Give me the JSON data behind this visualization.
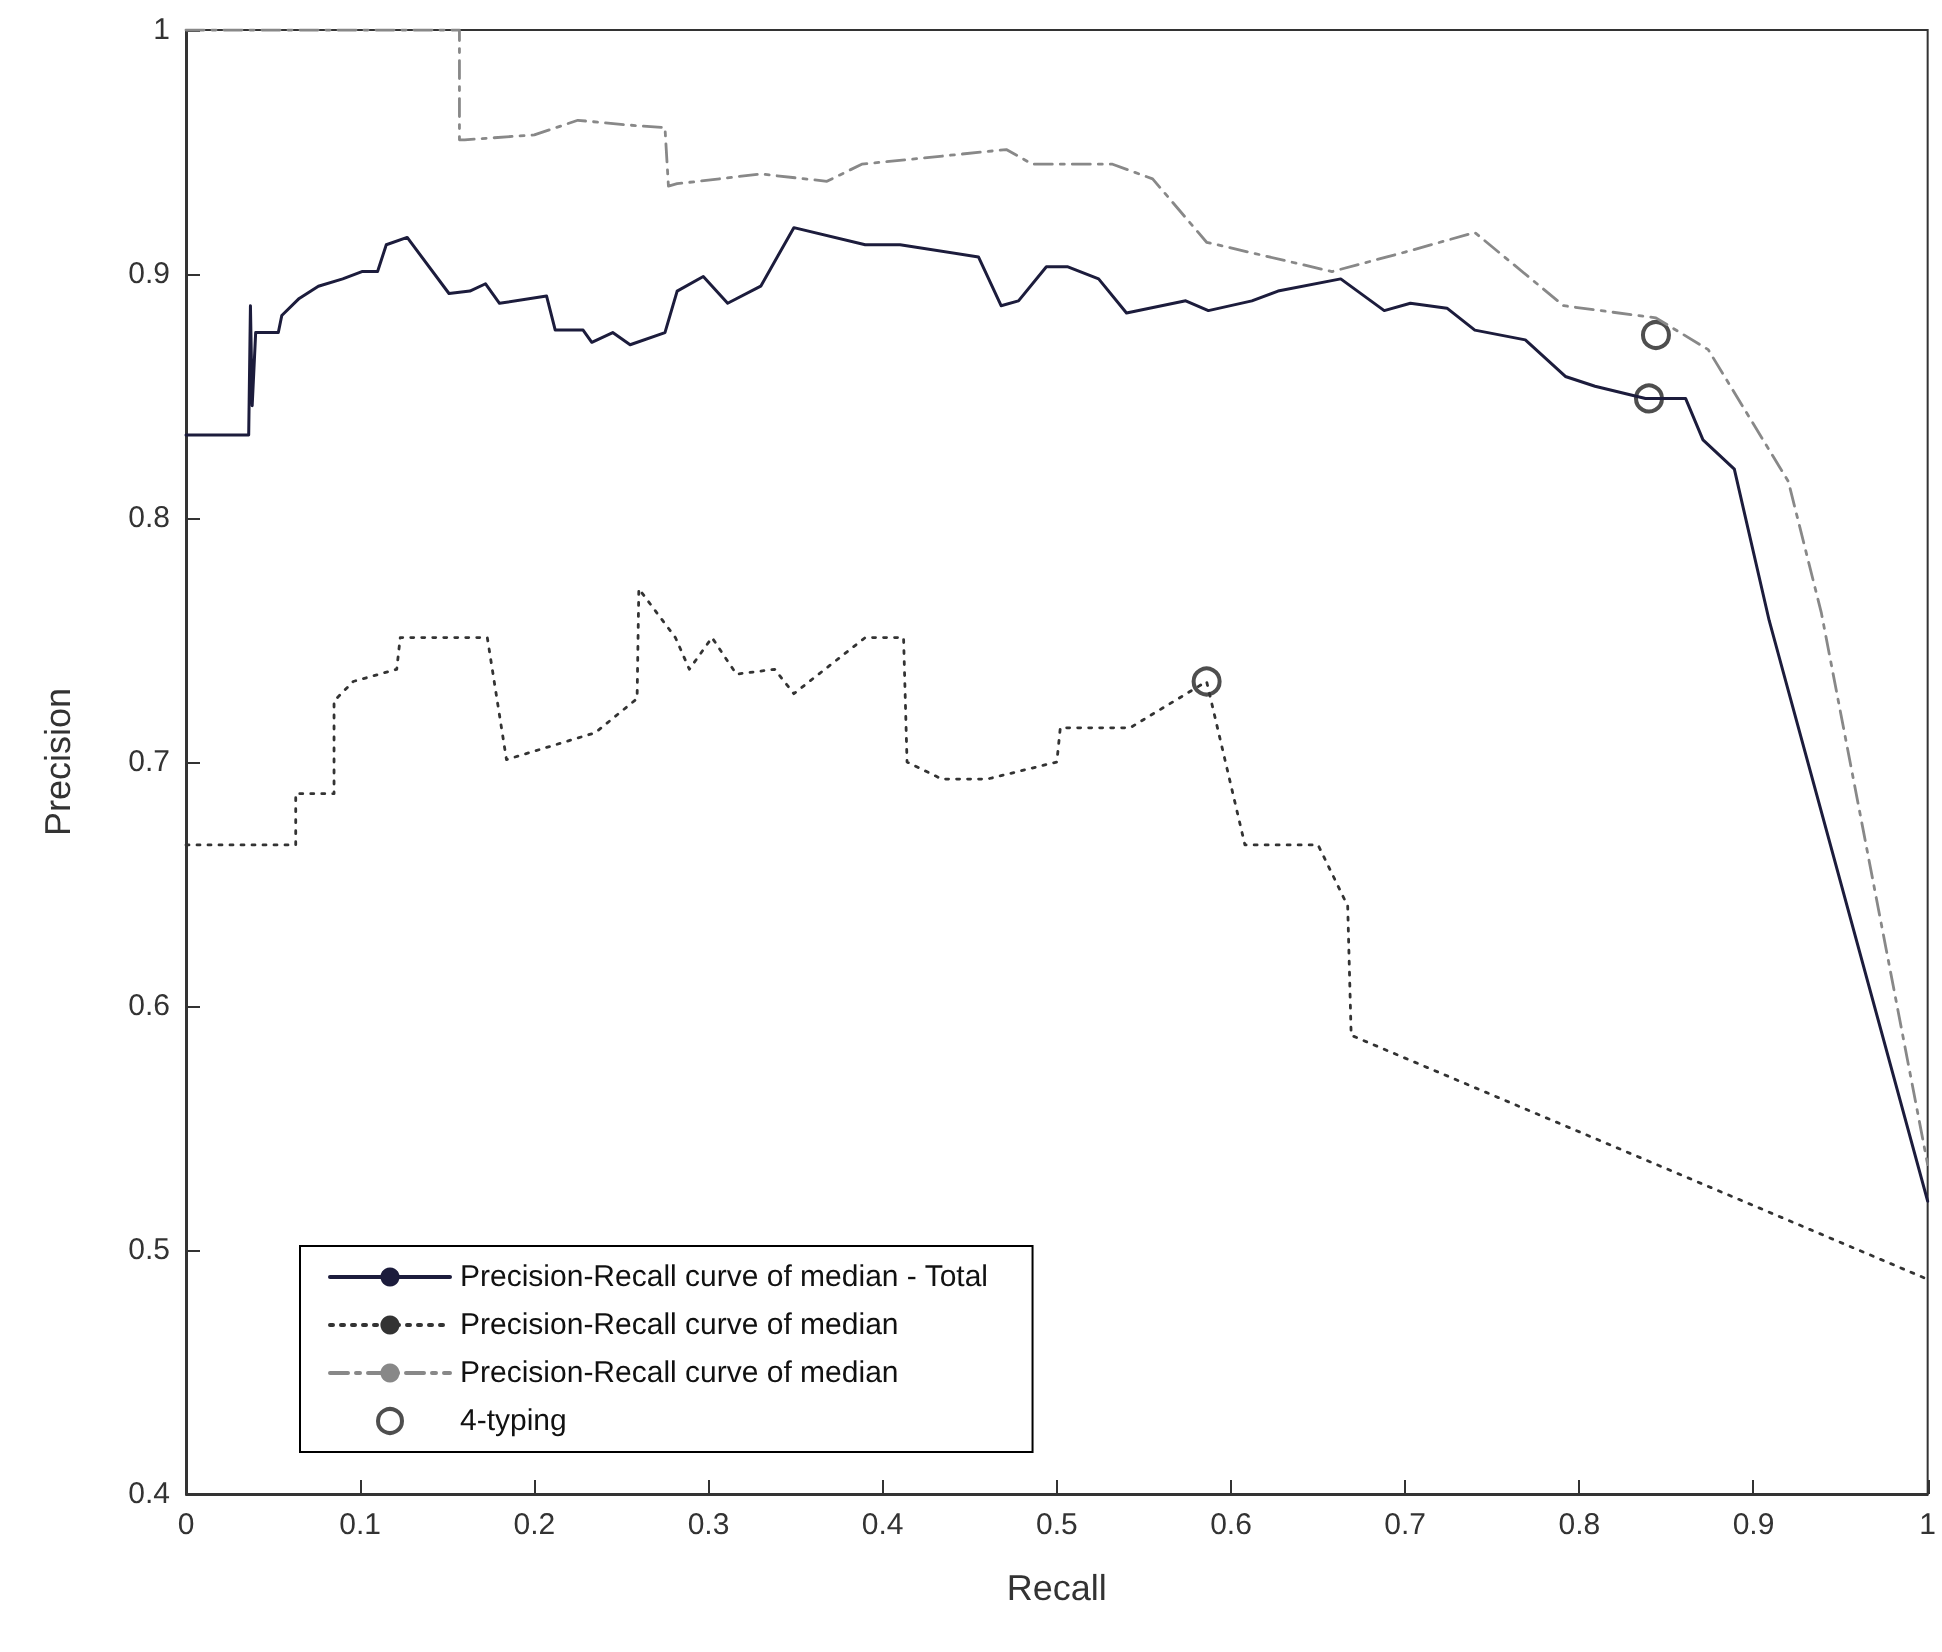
{
  "chart_data": {
    "type": "line",
    "xlabel": "Recall",
    "ylabel": "Precision",
    "xlim": [
      0,
      1
    ],
    "xticks": [
      0,
      0.1,
      0.2,
      0.3,
      0.4,
      0.5,
      0.6,
      0.7,
      0.8,
      0.9,
      1
    ],
    "ylim": [
      0.4,
      1
    ],
    "yticks": [
      0.4,
      0.5,
      0.6,
      0.7,
      0.8,
      0.9,
      1
    ],
    "grid": false,
    "legend": "bottom left",
    "series": [
      {
        "name": "Precision-Recall curve of median - Total",
        "color": "#1c1c3c",
        "line_style": "solid",
        "marker": "none",
        "x": [
          0,
          0.036,
          0.037,
          0.038,
          0.04,
          0.053,
          0.055,
          0.065,
          0.076,
          0.09,
          0.101,
          0.11,
          0.115,
          0.127,
          0.151,
          0.163,
          0.172,
          0.18,
          0.207,
          0.212,
          0.228,
          0.233,
          0.245,
          0.255,
          0.275,
          0.282,
          0.297,
          0.311,
          0.33,
          0.349,
          0.39,
          0.41,
          0.455,
          0.468,
          0.478,
          0.494,
          0.506,
          0.524,
          0.54,
          0.574,
          0.587,
          0.612,
          0.627,
          0.663,
          0.688,
          0.703,
          0.724,
          0.74,
          0.769,
          0.792,
          0.809,
          0.838,
          0.861,
          0.871,
          0.889,
          0.909,
          1
        ],
        "values": [
          0.834,
          0.834,
          0.887,
          0.846,
          0.876,
          0.876,
          0.883,
          0.89,
          0.895,
          0.898,
          0.901,
          0.901,
          0.912,
          0.915,
          0.892,
          0.893,
          0.896,
          0.888,
          0.891,
          0.877,
          0.877,
          0.872,
          0.876,
          0.871,
          0.876,
          0.893,
          0.899,
          0.888,
          0.895,
          0.919,
          0.912,
          0.912,
          0.907,
          0.887,
          0.889,
          0.903,
          0.903,
          0.898,
          0.884,
          0.889,
          0.885,
          0.889,
          0.893,
          0.898,
          0.885,
          0.888,
          0.886,
          0.877,
          0.873,
          0.858,
          0.854,
          0.849,
          0.849,
          0.832,
          0.82,
          0.758,
          0.52
        ]
      },
      {
        "name": "Precision-Recall curve of median",
        "color": "#333333",
        "line_style": "dotted",
        "marker": "none",
        "x": [
          0,
          0.063,
          0.063,
          0.085,
          0.085,
          0.096,
          0.121,
          0.123,
          0.173,
          0.184,
          0.235,
          0.259,
          0.26,
          0.281,
          0.289,
          0.302,
          0.316,
          0.338,
          0.349,
          0.39,
          0.412,
          0.414,
          0.434,
          0.46,
          0.5,
          0.502,
          0.542,
          0.586,
          0.608,
          0.65,
          0.667,
          0.669,
          1
        ],
        "values": [
          0.666,
          0.666,
          0.687,
          0.687,
          0.725,
          0.733,
          0.738,
          0.751,
          0.751,
          0.701,
          0.712,
          0.726,
          0.771,
          0.751,
          0.738,
          0.751,
          0.736,
          0.738,
          0.728,
          0.751,
          0.751,
          0.7,
          0.693,
          0.693,
          0.7,
          0.714,
          0.714,
          0.733,
          0.666,
          0.666,
          0.641,
          0.588,
          0.488
        ]
      },
      {
        "name": "Precision-Recall curve of median",
        "color": "#888888",
        "line_style": "dashed",
        "marker": "none",
        "x": [
          0,
          0.157,
          0.157,
          0.16,
          0.2,
          0.225,
          0.255,
          0.275,
          0.277,
          0.282,
          0.33,
          0.368,
          0.388,
          0.471,
          0.486,
          0.509,
          0.532,
          0.555,
          0.586,
          0.658,
          0.7,
          0.74,
          0.791,
          0.844,
          0.874,
          0.92,
          0.939,
          1
        ],
        "values": [
          1,
          1,
          0.955,
          0.955,
          0.957,
          0.963,
          0.961,
          0.96,
          0.936,
          0.937,
          0.941,
          0.938,
          0.945,
          0.951,
          0.945,
          0.945,
          0.945,
          0.939,
          0.913,
          0.901,
          0.909,
          0.917,
          0.887,
          0.882,
          0.869,
          0.815,
          0.761,
          0.535
        ]
      },
      {
        "name": "4-typing",
        "type": "scatter",
        "color": "#222222",
        "marker": "circle",
        "x": [
          0.844,
          0.84,
          0.586
        ],
        "values": [
          0.875,
          0.849,
          0.733
        ]
      }
    ]
  }
}
